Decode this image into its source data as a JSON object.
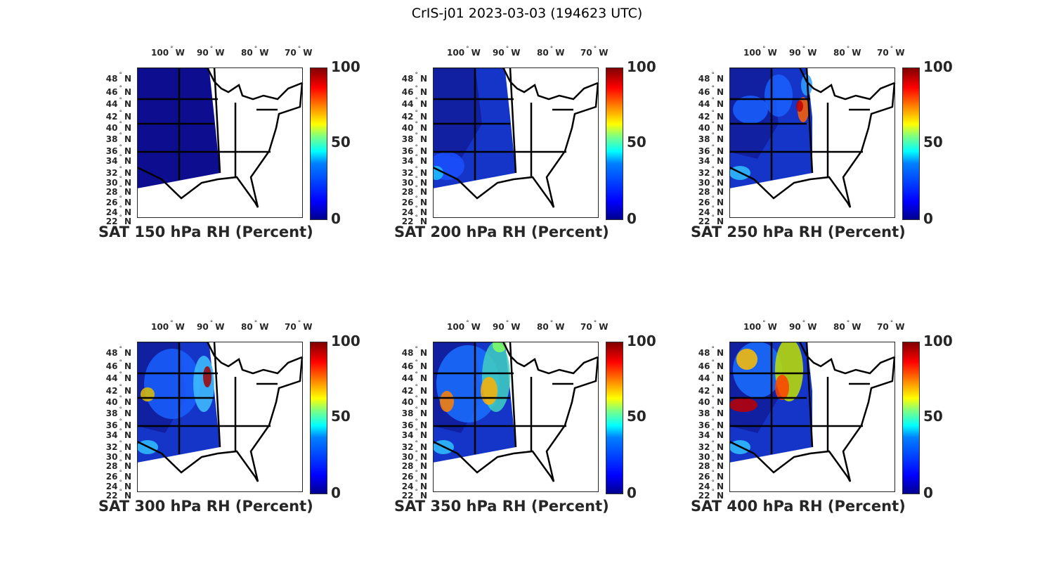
{
  "title": "CrIS-j01 2023-03-03 (194623 UTC)",
  "lon_ticks": [
    "100",
    "90",
    "80",
    "70"
  ],
  "lon_suffix": "W",
  "lat_ticks": [
    "48",
    "46",
    "44",
    "42",
    "40",
    "38",
    "36",
    "34",
    "32",
    "30",
    "28",
    "26",
    "24",
    "22"
  ],
  "lat_suffix": "N",
  "degree_symbol": "°",
  "colorbar": {
    "ticks": [
      "100",
      "50",
      "0"
    ],
    "min": 0,
    "max": 100,
    "colormap": "jet"
  },
  "panels": [
    {
      "title": "SAT 150 hPa RH (Percent)"
    },
    {
      "title": "SAT 200 hPa RH (Percent)"
    },
    {
      "title": "SAT 250 hPa RH (Percent)"
    },
    {
      "title": "SAT 300 hPa RH (Percent)"
    },
    {
      "title": "SAT 350 hPa RH (Percent)"
    },
    {
      "title": "SAT 400 hPa RH (Percent)"
    }
  ]
}
